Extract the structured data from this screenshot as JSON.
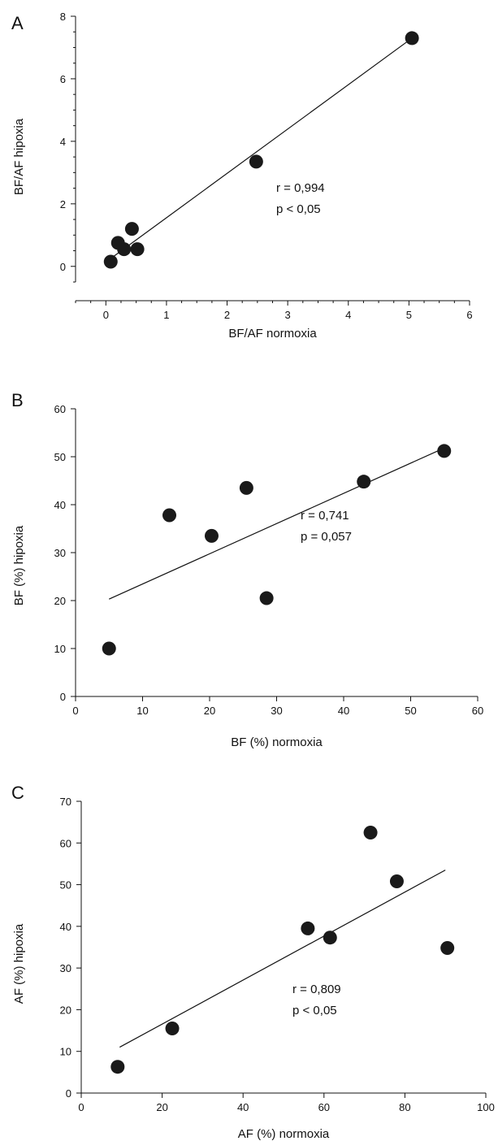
{
  "chart_data": [
    {
      "type": "scatter",
      "panel": "A",
      "xlabel": "BF/AF normoxia",
      "ylabel": "BF/AF hipoxia",
      "xlim": [
        -0.5,
        6
      ],
      "ylim": [
        -0.5,
        8
      ],
      "xticks": [
        0,
        1,
        2,
        3,
        4,
        5,
        6
      ],
      "yticks": [
        0,
        2,
        4,
        6,
        8
      ],
      "points": [
        {
          "x": 0.08,
          "y": 0.15
        },
        {
          "x": 0.2,
          "y": 0.75
        },
        {
          "x": 0.3,
          "y": 0.55
        },
        {
          "x": 0.43,
          "y": 1.2
        },
        {
          "x": 0.52,
          "y": 0.55
        },
        {
          "x": 2.48,
          "y": 3.35
        },
        {
          "x": 5.05,
          "y": 7.3
        }
      ],
      "fit_line": [
        {
          "x": 0.08,
          "y": 0.25
        },
        {
          "x": 5.05,
          "y": 7.3
        }
      ],
      "stats": [
        "r = 0,994",
        "p < 0,05"
      ]
    },
    {
      "type": "scatter",
      "panel": "B",
      "xlabel": "BF (%) normoxia",
      "ylabel": "BF (%) hipoxia",
      "xlim": [
        0,
        60
      ],
      "ylim": [
        0,
        60
      ],
      "xticks": [
        0,
        10,
        20,
        30,
        40,
        50,
        60
      ],
      "yticks": [
        0,
        10,
        20,
        30,
        40,
        50,
        60
      ],
      "points": [
        {
          "x": 5,
          "y": 10
        },
        {
          "x": 14,
          "y": 37.8
        },
        {
          "x": 20.3,
          "y": 33.5
        },
        {
          "x": 25.5,
          "y": 43.5
        },
        {
          "x": 28.5,
          "y": 20.5
        },
        {
          "x": 43,
          "y": 44.8
        },
        {
          "x": 55,
          "y": 51.2
        }
      ],
      "fit_line": [
        {
          "x": 5,
          "y": 20.3
        },
        {
          "x": 54.5,
          "y": 51.5
        }
      ],
      "stats": [
        "r = 0,741",
        "p = 0,057"
      ]
    },
    {
      "type": "scatter",
      "panel": "C",
      "xlabel": "AF (%) normoxia",
      "ylabel": "AF (%) hipoxia",
      "xlim": [
        0,
        100
      ],
      "ylim": [
        0,
        70
      ],
      "xticks": [
        0,
        20,
        40,
        60,
        80,
        100
      ],
      "yticks": [
        0,
        10,
        20,
        30,
        40,
        50,
        60,
        70
      ],
      "points": [
        {
          "x": 9,
          "y": 6.3
        },
        {
          "x": 22.5,
          "y": 15.5
        },
        {
          "x": 56,
          "y": 39.5
        },
        {
          "x": 61.5,
          "y": 37.3
        },
        {
          "x": 71.5,
          "y": 62.5
        },
        {
          "x": 78,
          "y": 50.8
        },
        {
          "x": 90.5,
          "y": 34.8
        }
      ],
      "fit_line": [
        {
          "x": 9.5,
          "y": 11
        },
        {
          "x": 90,
          "y": 53.5
        }
      ],
      "stats": [
        "r = 0,809",
        "p < 0,05"
      ]
    }
  ]
}
